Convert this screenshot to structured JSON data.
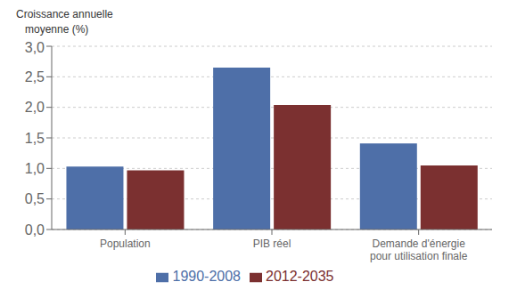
{
  "chart_data": {
    "type": "bar",
    "ylabel": "Croissance annuelle\n   moyenne (%)",
    "categories": [
      "Population",
      "PIB réel",
      "Demande d'énergie\npour utilisation finale"
    ],
    "series": [
      {
        "name": "1990-2008",
        "color": "#4E6FA8",
        "values": [
          1.03,
          2.65,
          1.41
        ]
      },
      {
        "name": "2012-2035",
        "color": "#7B3030",
        "values": [
          0.97,
          2.04,
          1.05
        ]
      }
    ],
    "ylim": [
      0,
      3.0
    ],
    "yticks": [
      {
        "value": 0.0,
        "label": "0,0"
      },
      {
        "value": 0.5,
        "label": "0,5"
      },
      {
        "value": 1.0,
        "label": "1,0"
      },
      {
        "value": 1.5,
        "label": "1,5"
      },
      {
        "value": 2.0,
        "label": "2,0"
      },
      {
        "value": 2.5,
        "label": "2,5"
      },
      {
        "value": 3.0,
        "label": "3,0"
      }
    ],
    "grid": true,
    "legend": "bottom"
  }
}
